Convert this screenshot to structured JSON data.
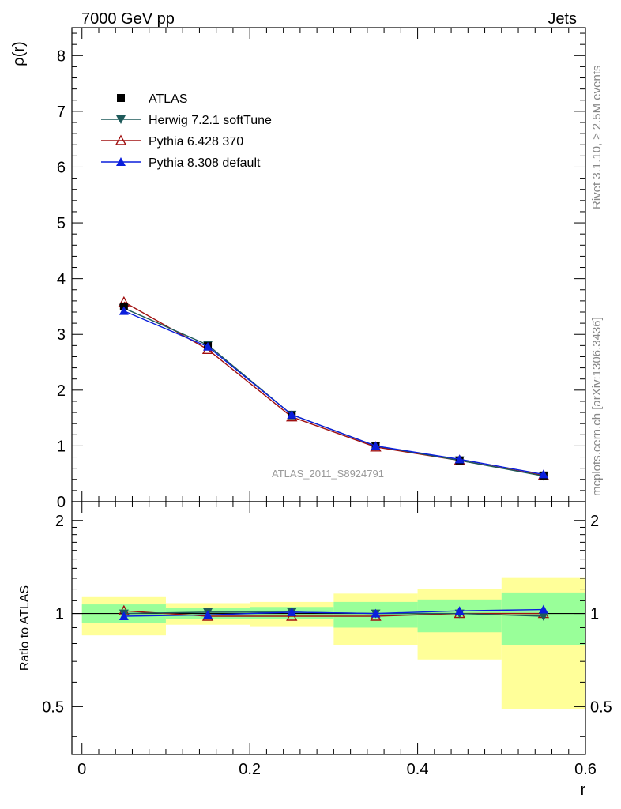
{
  "header": {
    "left": "7000 GeV pp",
    "right": "Jets"
  },
  "side_labels": {
    "rivet": "Rivet 3.1.10, ≥ 2.5M events",
    "mcplots": "mcplots.cern.ch [arXiv:1306.3436]"
  },
  "analysis_label": "ATLAS_2011_S8924791",
  "colors": {
    "ATLAS": "#000000",
    "Herwig": "#1e5a5a",
    "Pythia6": "#a01010",
    "Pythia8": "#0a1edc",
    "band_inner": "#99ff99",
    "band_outer": "#ffff99"
  },
  "chart_data": [
    {
      "type": "line",
      "panel": "main",
      "xlabel": "",
      "ylabel": "ρ(r)",
      "xlim": [
        -0.012,
        0.6
      ],
      "ylim": [
        0,
        8.5
      ],
      "yticks": [
        0,
        1,
        2,
        3,
        4,
        5,
        6,
        7,
        8
      ],
      "legend_position": "top-left",
      "x": [
        0.05,
        0.15,
        0.25,
        0.35,
        0.45,
        0.55
      ],
      "series": [
        {
          "name": "ATLAS",
          "marker": "square",
          "values": [
            3.5,
            2.79,
            1.55,
            1.0,
            0.74,
            0.47
          ]
        },
        {
          "name": "Herwig 7.2.1 softTune",
          "marker": "triangle-down",
          "values": [
            3.47,
            2.81,
            1.56,
            1.0,
            0.74,
            0.46
          ]
        },
        {
          "name": "Pythia 6.428 370",
          "marker": "triangle-up-open",
          "values": [
            3.58,
            2.73,
            1.52,
            0.98,
            0.74,
            0.47
          ]
        },
        {
          "name": "Pythia 8.308 default",
          "marker": "triangle-up",
          "values": [
            3.42,
            2.78,
            1.56,
            1.0,
            0.76,
            0.49
          ]
        }
      ]
    },
    {
      "type": "line",
      "panel": "ratio",
      "xlabel": "r",
      "ylabel": "Ratio to ATLAS",
      "xlim": [
        -0.012,
        0.6
      ],
      "ylim": [
        0.35,
        2.3
      ],
      "xticks": [
        0,
        0.2,
        0.4,
        0.6
      ],
      "xtick_labels": [
        "0",
        "0.2",
        "0.4",
        "0.6"
      ],
      "yticks": [
        0.5,
        1,
        2
      ],
      "ytick_labels": [
        "0.5",
        "1",
        "2"
      ],
      "bins": [
        [
          0.0,
          0.1
        ],
        [
          0.1,
          0.2
        ],
        [
          0.2,
          0.3
        ],
        [
          0.3,
          0.4
        ],
        [
          0.4,
          0.5
        ],
        [
          0.5,
          0.6
        ]
      ],
      "band_inner": [
        [
          0.93,
          1.07
        ],
        [
          0.96,
          1.04
        ],
        [
          0.96,
          1.05
        ],
        [
          0.9,
          1.09
        ],
        [
          0.87,
          1.11
        ],
        [
          0.79,
          1.17
        ]
      ],
      "band_outer": [
        [
          0.85,
          1.13
        ],
        [
          0.92,
          1.08
        ],
        [
          0.91,
          1.09
        ],
        [
          0.79,
          1.16
        ],
        [
          0.71,
          1.2
        ],
        [
          0.49,
          1.31
        ]
      ],
      "x": [
        0.05,
        0.15,
        0.25,
        0.35,
        0.45,
        0.55
      ],
      "series": [
        {
          "name": "Herwig 7.2.1 softTune",
          "values": [
            1.0,
            1.01,
            1.01,
            1.0,
            1.0,
            0.98
          ]
        },
        {
          "name": "Pythia 6.428 370",
          "values": [
            1.02,
            0.98,
            0.98,
            0.98,
            1.0,
            1.0
          ]
        },
        {
          "name": "Pythia 8.308 default",
          "values": [
            0.98,
            0.99,
            1.01,
            1.0,
            1.02,
            1.03
          ]
        }
      ]
    }
  ]
}
